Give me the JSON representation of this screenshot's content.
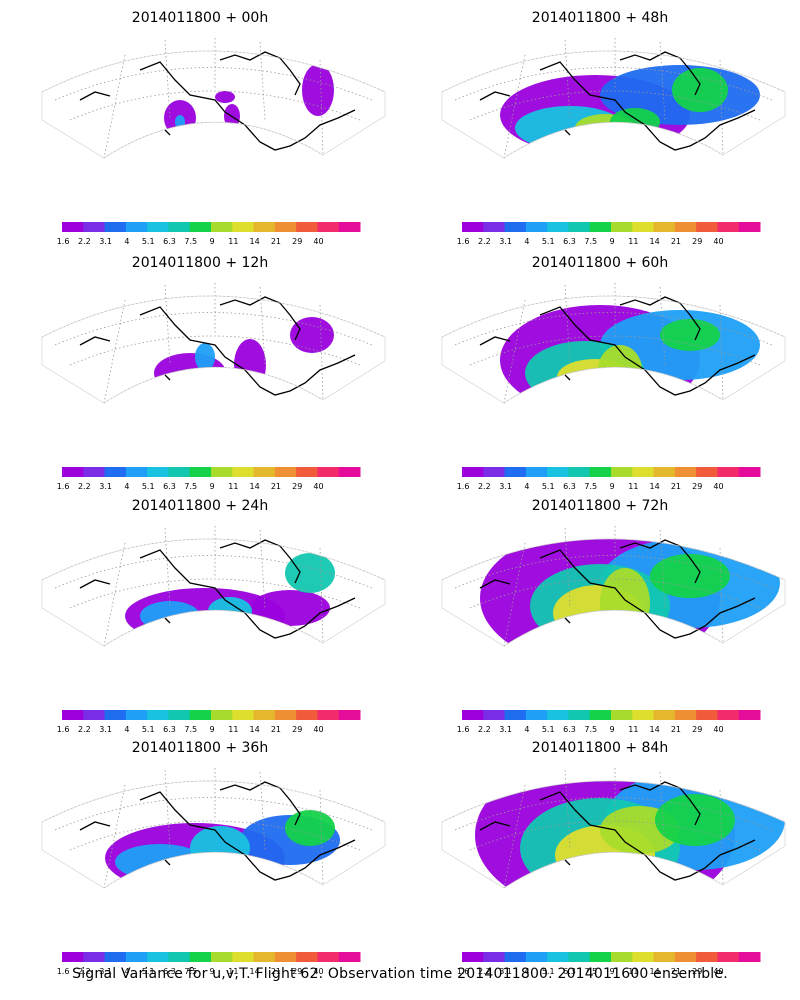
{
  "figure": {
    "caption": "Signal Variance for u,v,T. Flight 62. Observation time 2014011800. 2014011600 ensemble."
  },
  "colorbar": {
    "colors": [
      "#9b00dd",
      "#7a2ce6",
      "#1f6cf0",
      "#1f9ff5",
      "#18c2e0",
      "#12c7b0",
      "#14d24a",
      "#a8dc2c",
      "#dede2e",
      "#e5b72c",
      "#ee8f33",
      "#f15a3a",
      "#f22b6a",
      "#e50c9b"
    ],
    "labels": [
      "1.6",
      "2.2",
      "3.1",
      "4",
      "5.1",
      "6.3",
      "7.5",
      "9",
      "11",
      "14",
      "21",
      "29",
      "40"
    ]
  },
  "panels": [
    {
      "id": "p00",
      "title": "2014011800 + 00h",
      "lead_hours": 0
    },
    {
      "id": "p48",
      "title": "2014011800 + 48h",
      "lead_hours": 48
    },
    {
      "id": "p12",
      "title": "2014011800 + 12h",
      "lead_hours": 12
    },
    {
      "id": "p60",
      "title": "2014011800 + 60h",
      "lead_hours": 60
    },
    {
      "id": "p24",
      "title": "2014011800 + 24h",
      "lead_hours": 24
    },
    {
      "id": "p72",
      "title": "2014011800 + 72h",
      "lead_hours": 72
    },
    {
      "id": "p36",
      "title": "2014011800 + 36h",
      "lead_hours": 36
    },
    {
      "id": "p84",
      "title": "2014011800 + 84h",
      "lead_hours": 84
    }
  ]
}
